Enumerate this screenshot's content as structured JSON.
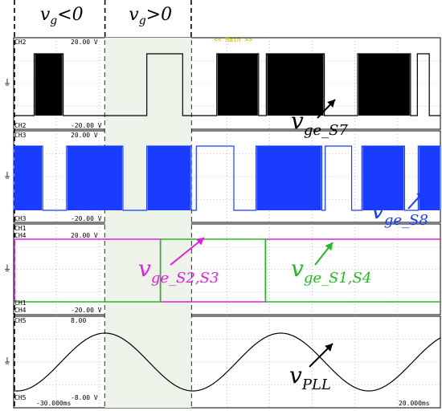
{
  "chart_data": {
    "type": "line",
    "title": "<< Main >>",
    "regions": [
      {
        "label": "v",
        "sub": "g",
        "op": "<0"
      },
      {
        "label": "v",
        "sub": "g",
        "op": ">0"
      }
    ],
    "time_labels": {
      "left": "-30.000ms",
      "right": "20.000ms"
    },
    "panels": [
      {
        "id": "gate-s7",
        "ticks": [
          {
            "ch": "CH2",
            "text": "20.00 V",
            "col": "#000000"
          },
          {
            "ch": "CH2",
            "text": "-20.00 V",
            "col": "#000000",
            "pos": "bottom"
          }
        ],
        "series": [
          {
            "name": "CH2",
            "color": "#000000",
            "on_intervals_ms": [
              [
                -27.6,
                -24.2
              ],
              [
                -14.4,
                -10.2
              ],
              [
                -6.2,
                -1.3
              ],
              [
                -0.4,
                6.4
              ],
              [
                10.3,
                16.5
              ],
              [
                17.3,
                18.7
              ]
            ],
            "pwm_intervals_ms": [
              [
                -27.6,
                -24.2
              ],
              [
                -6.2,
                -1.3
              ],
              [
                -0.4,
                6.4
              ],
              [
                10.3,
                16.5
              ]
            ]
          }
        ],
        "annotation": {
          "text": "v",
          "sub": "ge_S7",
          "color": "#000000"
        }
      },
      {
        "id": "gate-s8",
        "ticks": [
          {
            "ch": "CH3",
            "text": "20.00 V",
            "col": "#1a3cff"
          },
          {
            "ch": "CH3",
            "text": "-20.00 V",
            "col": "#000000",
            "pos": "bottom"
          }
        ],
        "series": [
          {
            "name": "CH3",
            "color": "#1a3cff",
            "on_intervals_ms": [
              [
                -30.0,
                -26.6
              ],
              [
                -23.8,
                -17.2
              ],
              [
                -14.4,
                -9.2
              ],
              [
                -8.6,
                -4.2
              ],
              [
                -1.6,
                6.1
              ],
              [
                6.5,
                9.6
              ],
              [
                10.8,
                15.8
              ],
              [
                17.4,
                20.0
              ]
            ],
            "pwm_intervals_ms": [
              [
                -30.0,
                -26.6
              ],
              [
                -23.8,
                -17.2
              ],
              [
                -14.4,
                -9.2
              ],
              [
                -1.6,
                6.1
              ],
              [
                10.8,
                15.8
              ],
              [
                17.4,
                20.0
              ]
            ]
          }
        ],
        "annotation": {
          "text": "v",
          "sub": "ge_S8",
          "color": "#1a3cff"
        }
      },
      {
        "id": "gate-s1-s4",
        "ticks": [
          {
            "ch": "CH1",
            "text": "",
            "col": "#00aa00"
          },
          {
            "ch": "CH4",
            "text": "20.00 V",
            "col": "#e020e0"
          },
          {
            "ch": "CH1",
            "text": "",
            "col": "#00aa00",
            "pos": "bottom1"
          },
          {
            "ch": "CH4",
            "text": "-20.00 V",
            "col": "#e020e0",
            "pos": "bottom2"
          }
        ],
        "series": [
          {
            "name": "CH4",
            "color": "#e020e0",
            "high_intervals_ms": [
              [
                -30.0,
                -12.8
              ],
              [
                -0.5,
                20.0
              ]
            ]
          },
          {
            "name": "CH1",
            "color": "#22bb22",
            "high_intervals_ms": [
              [
                -12.8,
                -0.5
              ]
            ]
          }
        ],
        "annotations": [
          {
            "text": "v",
            "sub": "ge_S2,S3",
            "color": "#e020e0"
          },
          {
            "text": "v",
            "sub": "ge_S1,S4",
            "color": "#22bb22"
          }
        ]
      },
      {
        "id": "pll",
        "ticks": [
          {
            "ch": "CH5",
            "text": "8.00",
            "col": "#000000"
          },
          {
            "ch": "CH5",
            "text": "-8.00 V",
            "col": "#000000",
            "pos": "bottom"
          }
        ],
        "series": [
          {
            "name": "CH5",
            "color": "#000000",
            "type": "sine",
            "period_ms": 20.6,
            "peak_at_ms": -19.3
          }
        ],
        "annotation": {
          "text": "v",
          "sub": "PLL",
          "color": "#000000"
        }
      }
    ],
    "x_range_ms": [
      -30.0,
      20.0
    ],
    "grid": true
  }
}
